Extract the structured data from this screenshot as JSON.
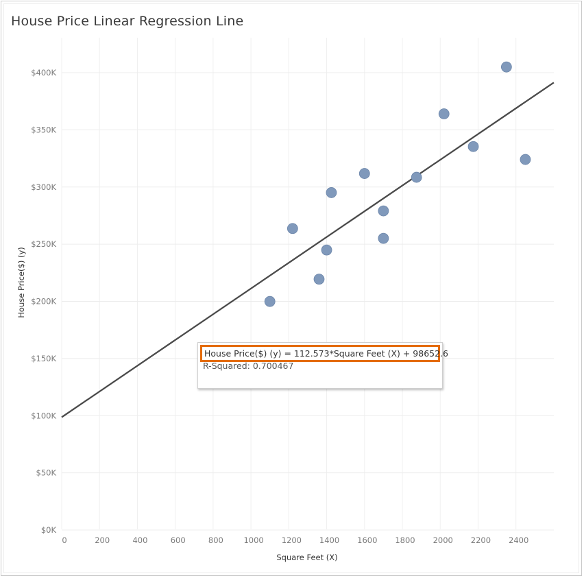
{
  "title": "House Price Linear Regression Line",
  "tooltip": {
    "equation": "House Price($) (y) = 112.573*Square Feet (X) + 98652.6",
    "r_squared": "R-Squared: 0.700467"
  },
  "colors": {
    "point": "#8099bb",
    "point_stroke": "#6c86aa",
    "trend_line": "#4a4a4a",
    "highlight_border": "#e46c0a"
  },
  "chart_data": {
    "type": "scatter",
    "title": "House Price Linear Regression Line",
    "xlabel": "Square Feet (X)",
    "ylabel": "House Price($) (y)",
    "xlim": [
      0,
      2600
    ],
    "ylim": [
      0,
      415000
    ],
    "x_ticks": [
      0,
      200,
      400,
      600,
      800,
      1000,
      1200,
      1400,
      1600,
      1800,
      2000,
      2200,
      2400
    ],
    "x_tick_labels": [
      "0",
      "200",
      "400",
      "600",
      "800",
      "1000",
      "1200",
      "1400",
      "1600",
      "1800",
      "2000",
      "2200",
      "2400"
    ],
    "y_ticks": [
      0,
      50000,
      100000,
      150000,
      200000,
      250000,
      300000,
      350000,
      400000
    ],
    "y_tick_labels": [
      "$0K",
      "$50K",
      "$100K",
      "$150K",
      "$200K",
      "$250K",
      "$300K",
      "$350K",
      "$400K"
    ],
    "grid": true,
    "points": [
      {
        "x": 1100,
        "y": 199900
      },
      {
        "x": 1220,
        "y": 263700
      },
      {
        "x": 1360,
        "y": 219400
      },
      {
        "x": 1400,
        "y": 244900
      },
      {
        "x": 1425,
        "y": 295100
      },
      {
        "x": 1600,
        "y": 311800
      },
      {
        "x": 1700,
        "y": 279100
      },
      {
        "x": 1700,
        "y": 255100
      },
      {
        "x": 1875,
        "y": 308500
      },
      {
        "x": 2020,
        "y": 364000
      },
      {
        "x": 2175,
        "y": 335400
      },
      {
        "x": 2350,
        "y": 405000
      },
      {
        "x": 2450,
        "y": 324100
      }
    ],
    "trend_line": {
      "slope": 112.573,
      "intercept": 98652.6
    }
  }
}
